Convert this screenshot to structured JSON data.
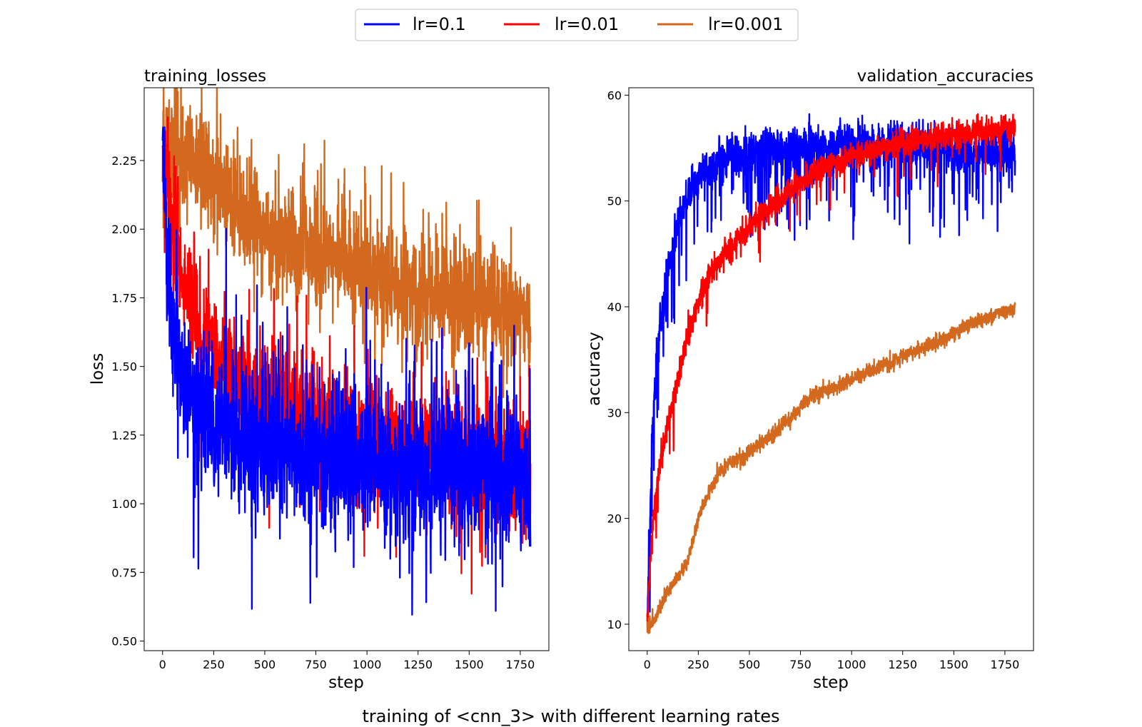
{
  "figure": {
    "suptitle": "training of <cnn_3> with different learning rates",
    "legend": {
      "placement": "top-center",
      "entries": [
        {
          "label": "lr=0.1",
          "color": "#0000ff"
        },
        {
          "label": "lr=0.01",
          "color": "#ff0000"
        },
        {
          "label": "lr=0.001",
          "color": "#d2691e"
        }
      ]
    }
  },
  "chart_data": [
    {
      "type": "line",
      "title": "training_losses",
      "title_align": "left",
      "xlabel": "step",
      "ylabel": "loss",
      "xlim": [
        -90,
        1890
      ],
      "ylim": [
        0.465,
        2.515
      ],
      "xticks": [
        0,
        250,
        500,
        750,
        1000,
        1250,
        1500,
        1750
      ],
      "yticks": [
        0.5,
        0.75,
        1.0,
        1.25,
        1.5,
        1.75,
        2.0,
        2.25
      ],
      "ytick_labels": [
        "0.50",
        "0.75",
        "1.00",
        "1.25",
        "1.50",
        "1.75",
        "2.00",
        "2.25"
      ],
      "grid": false,
      "series": [
        {
          "name": "lr=0.001",
          "color": "#d2691e",
          "x": [
            0,
            50,
            100,
            150,
            200,
            300,
            400,
            500,
            600,
            700,
            800,
            900,
            1000,
            1100,
            1200,
            1300,
            1400,
            1500,
            1600,
            1700,
            1800
          ],
          "values": [
            2.3,
            2.29,
            2.28,
            2.26,
            2.22,
            2.12,
            2.06,
            1.99,
            1.95,
            1.91,
            1.89,
            1.86,
            1.83,
            1.8,
            1.79,
            1.77,
            1.75,
            1.73,
            1.72,
            1.7,
            1.66
          ],
          "noise": 0.09,
          "spike_prob": 0.1,
          "spike_size": 0.2
        },
        {
          "name": "lr=0.01",
          "color": "#ff0000",
          "x": [
            0,
            25,
            50,
            100,
            150,
            200,
            300,
            400,
            500,
            600,
            700,
            800,
            900,
            1000,
            1100,
            1200,
            1300,
            1400,
            1500,
            1600,
            1700,
            1800
          ],
          "values": [
            2.3,
            2.15,
            2.0,
            1.82,
            1.7,
            1.6,
            1.48,
            1.42,
            1.37,
            1.34,
            1.31,
            1.28,
            1.26,
            1.24,
            1.23,
            1.21,
            1.2,
            1.19,
            1.18,
            1.17,
            1.16,
            1.15
          ],
          "noise": 0.1,
          "spike_prob": 0.07,
          "spike_size": 0.22
        },
        {
          "name": "lr=0.1",
          "color": "#0000ff",
          "x": [
            0,
            25,
            50,
            100,
            150,
            200,
            300,
            400,
            500,
            600,
            700,
            800,
            900,
            1000,
            1100,
            1200,
            1300,
            1400,
            1500,
            1600,
            1700,
            1800
          ],
          "values": [
            2.3,
            1.9,
            1.65,
            1.45,
            1.36,
            1.32,
            1.27,
            1.24,
            1.22,
            1.2,
            1.18,
            1.17,
            1.16,
            1.15,
            1.14,
            1.13,
            1.13,
            1.12,
            1.12,
            1.11,
            1.11,
            1.1
          ],
          "noise": 0.12,
          "spike_prob": 0.08,
          "spike_size": 0.3
        }
      ]
    },
    {
      "type": "line",
      "title": "validation_accuracies",
      "title_align": "right",
      "xlabel": "step",
      "ylabel": "accuracy",
      "xlim": [
        -90,
        1890
      ],
      "ylim": [
        7.5,
        60.7
      ],
      "xticks": [
        0,
        250,
        500,
        750,
        1000,
        1250,
        1500,
        1750
      ],
      "yticks": [
        10,
        20,
        30,
        40,
        50,
        60
      ],
      "ytick_labels": [
        "10",
        "20",
        "30",
        "40",
        "50",
        "60"
      ],
      "grid": false,
      "series": [
        {
          "name": "lr=0.1",
          "color": "#0000ff",
          "x": [
            0,
            10,
            25,
            50,
            75,
            100,
            150,
            200,
            250,
            300,
            400,
            500,
            600,
            700,
            800,
            900,
            1000,
            1100,
            1200,
            1300,
            1400,
            1500,
            1600,
            1700,
            1800
          ],
          "values": [
            10,
            18,
            28,
            36,
            40,
            44,
            48,
            50.5,
            52,
            53,
            54,
            54.5,
            54.8,
            55,
            55.2,
            55.2,
            55.3,
            55.2,
            55.1,
            55,
            54.9,
            54.8,
            54.7,
            54.6,
            54.5
          ],
          "noise": 1.0,
          "dip_prob": 0.07,
          "dip_size": 5.5
        },
        {
          "name": "lr=0.01",
          "color": "#ff0000",
          "x": [
            0,
            10,
            25,
            50,
            75,
            100,
            150,
            200,
            250,
            300,
            400,
            500,
            600,
            700,
            800,
            900,
            1000,
            1100,
            1200,
            1300,
            1400,
            1500,
            1600,
            1700,
            1800
          ],
          "values": [
            10,
            14,
            19,
            23.5,
            26.5,
            29,
            33,
            37.5,
            40.5,
            43,
            45.5,
            47.5,
            49.5,
            51,
            52.5,
            53.5,
            54.2,
            54.8,
            55.2,
            55.6,
            56,
            56.3,
            56.5,
            56.8,
            57
          ],
          "noise": 0.6,
          "dip_prob": 0.02,
          "dip_size": 3
        },
        {
          "name": "lr=0.001",
          "color": "#d2691e",
          "x": [
            0,
            25,
            50,
            100,
            150,
            200,
            250,
            300,
            350,
            400,
            500,
            600,
            700,
            800,
            900,
            1000,
            1100,
            1200,
            1300,
            1400,
            1500,
            1600,
            1700,
            1800
          ],
          "values": [
            9.8,
            10,
            11,
            13.2,
            14.5,
            16,
            20,
            22.5,
            24.2,
            25.2,
            26.3,
            27.8,
            29.5,
            31.5,
            32.3,
            33.2,
            34,
            34.8,
            35.7,
            36.5,
            37.5,
            38.5,
            39.3,
            39.9
          ],
          "noise": 0.35,
          "dip_prob": 0.0,
          "dip_size": 0
        }
      ]
    }
  ]
}
